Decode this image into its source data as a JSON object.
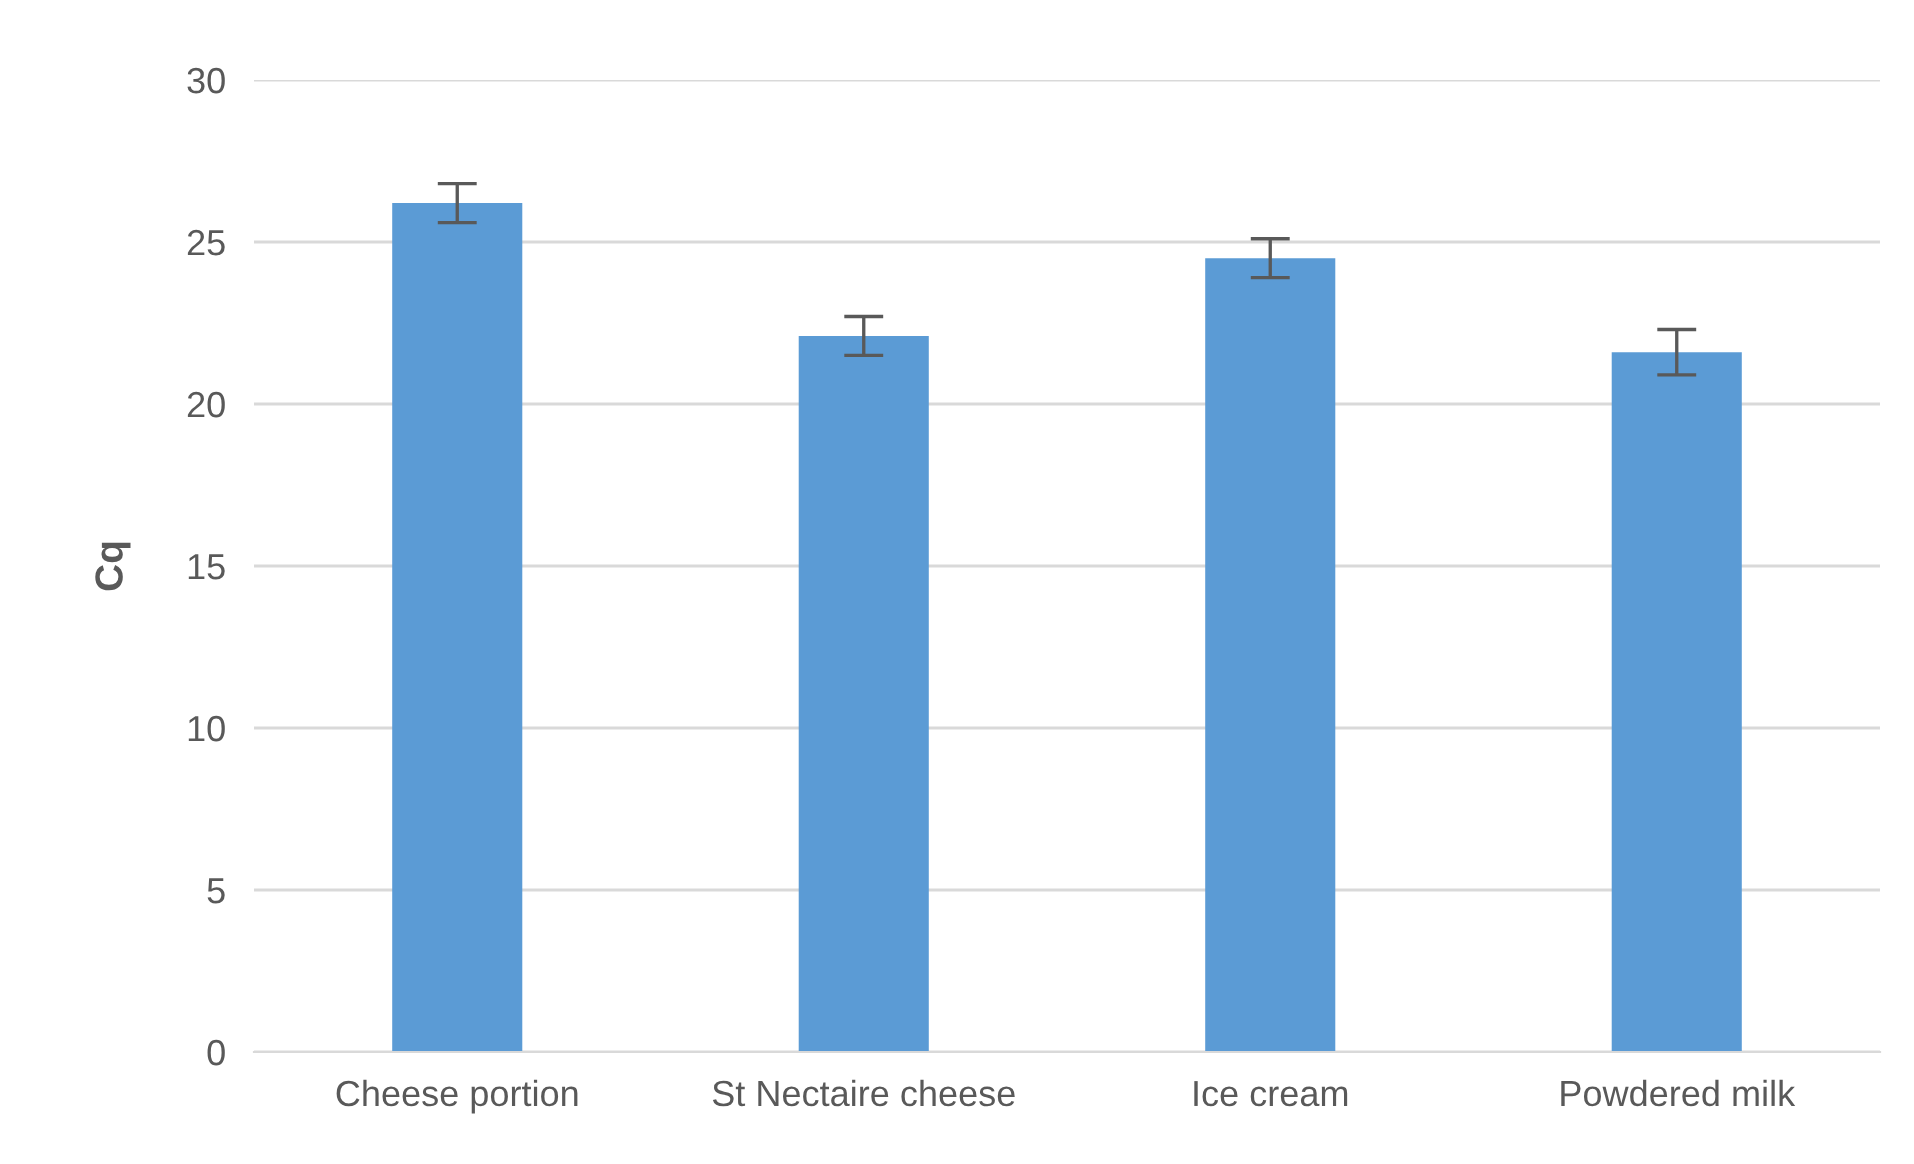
{
  "chart_data": {
    "type": "bar",
    "ylabel": "Cq",
    "categories": [
      "Cheese portion",
      "St Nectaire cheese",
      "Ice cream",
      "Powdered milk"
    ],
    "values": [
      26.2,
      22.1,
      24.5,
      21.6
    ],
    "errors": [
      0.6,
      0.6,
      0.6,
      0.7
    ],
    "color": "#5b9bd5",
    "ylim": [
      0,
      30
    ],
    "yticks": [
      0,
      5,
      10,
      15,
      20,
      25,
      30
    ],
    "grid": "y"
  }
}
